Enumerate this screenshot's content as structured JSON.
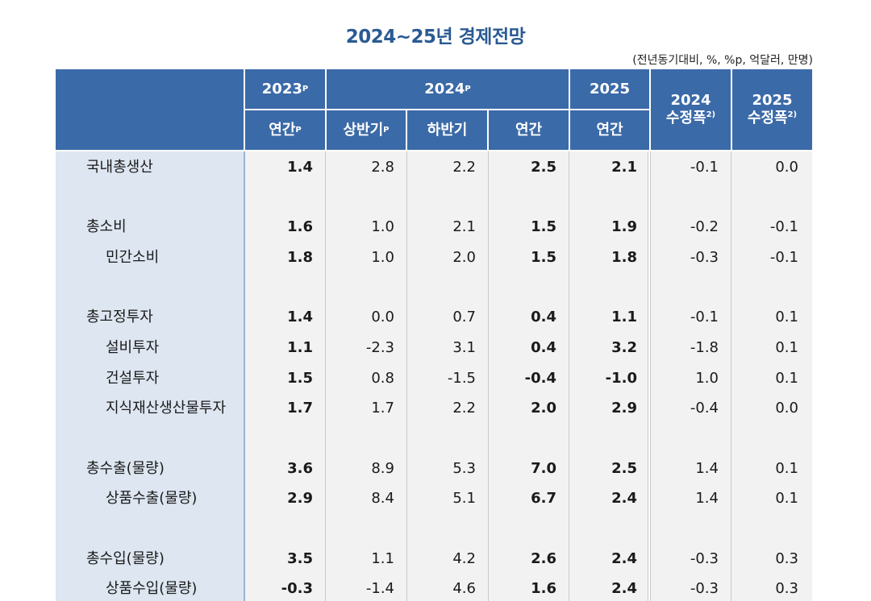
{
  "title": "2024~25년 경제전망",
  "unit_note": "(전년동기대비, %, %p, 억달러, 만명)",
  "header": {
    "y2023": "2023",
    "y2023_sup": "P",
    "y2024": "2024",
    "y2024_sup": "P",
    "y2025": "2025",
    "annual_2023": "연간",
    "annual_2023_sup": "P",
    "h1": "상반기",
    "h1_sup": "P",
    "h2": "하반기",
    "annual_2024": "연간",
    "annual_2025": "연간",
    "rev2024_year": "2024",
    "rev2024_label": "수정폭",
    "rev2024_sup": "2)",
    "rev2025_year": "2025",
    "rev2025_label": "수정폭",
    "rev2025_sup": "2)"
  },
  "rows": [
    {
      "label": "국내총생산",
      "indent": false,
      "values": [
        "1.4",
        "2.8",
        "2.2",
        "2.5",
        "2.1",
        "-0.1",
        "0.0"
      ]
    },
    {
      "label": "총소비",
      "indent": false,
      "values": [
        "1.6",
        "1.0",
        "2.1",
        "1.5",
        "1.9",
        "-0.2",
        "-0.1"
      ]
    },
    {
      "label": "민간소비",
      "indent": true,
      "values": [
        "1.8",
        "1.0",
        "2.0",
        "1.5",
        "1.8",
        "-0.3",
        "-0.1"
      ]
    },
    {
      "label": "총고정투자",
      "indent": false,
      "values": [
        "1.4",
        "0.0",
        "0.7",
        "0.4",
        "1.1",
        "-0.1",
        "0.1"
      ]
    },
    {
      "label": "설비투자",
      "indent": true,
      "values": [
        "1.1",
        "-2.3",
        "3.1",
        "0.4",
        "3.2",
        "-1.8",
        "0.1"
      ]
    },
    {
      "label": "건설투자",
      "indent": true,
      "values": [
        "1.5",
        "0.8",
        "-1.5",
        "-0.4",
        "-1.0",
        "1.0",
        "0.1"
      ]
    },
    {
      "label": "지식재산생산물투자",
      "indent": true,
      "values": [
        "1.7",
        "1.7",
        "2.2",
        "2.0",
        "2.9",
        "-0.4",
        "0.0"
      ]
    },
    {
      "label": "총수출(물량)",
      "indent": false,
      "values": [
        "3.6",
        "8.9",
        "5.3",
        "7.0",
        "2.5",
        "1.4",
        "0.1"
      ]
    },
    {
      "label": "상품수출(물량)",
      "indent": true,
      "values": [
        "2.9",
        "8.4",
        "5.1",
        "6.7",
        "2.4",
        "1.4",
        "0.1"
      ]
    },
    {
      "label": "총수입(물량)",
      "indent": false,
      "values": [
        "3.5",
        "1.1",
        "4.2",
        "2.6",
        "2.4",
        "-0.3",
        "0.3"
      ]
    },
    {
      "label": "상품수입(물량)",
      "indent": true,
      "values": [
        "-0.3",
        "-1.4",
        "4.6",
        "1.6",
        "2.4",
        "-0.3",
        "0.3"
      ]
    }
  ]
}
